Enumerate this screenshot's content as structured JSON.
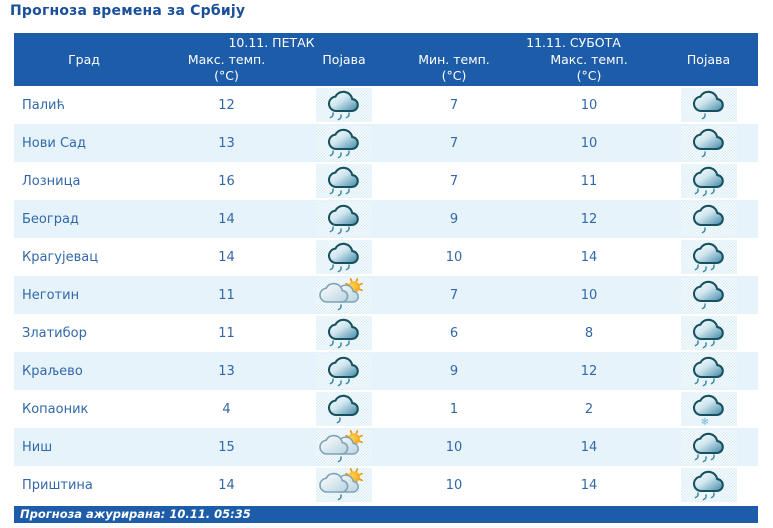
{
  "page": {
    "title": "Прогноза времена за Србију"
  },
  "colors": {
    "header_bg": "#1d5ca9",
    "row_alt_bg": "#e7f3fb",
    "text_blue": "#3268a8",
    "title_blue": "#1a4f9b"
  },
  "table": {
    "day1": "10.11. ПЕТАК",
    "day2": "11.11. СУБОТА",
    "columns": {
      "city": "Град",
      "max_temp": "Макс. темп.",
      "min_temp": "Мин. темп.",
      "unit": "(°C)",
      "phenomenon": "Појава"
    },
    "rows": [
      {
        "city": "Палић",
        "fri_max": "12",
        "fri_icon": "rain",
        "sat_min": "7",
        "sat_max": "10",
        "sat_icon": "light-rain"
      },
      {
        "city": "Нови Сад",
        "fri_max": "13",
        "fri_icon": "rain",
        "sat_min": "7",
        "sat_max": "10",
        "sat_icon": "light-rain"
      },
      {
        "city": "Лозница",
        "fri_max": "16",
        "fri_icon": "rain",
        "sat_min": "7",
        "sat_max": "11",
        "sat_icon": "rain"
      },
      {
        "city": "Београд",
        "fri_max": "14",
        "fri_icon": "rain",
        "sat_min": "9",
        "sat_max": "12",
        "sat_icon": "light-rain"
      },
      {
        "city": "Крагујевац",
        "fri_max": "14",
        "fri_icon": "rain",
        "sat_min": "10",
        "sat_max": "14",
        "sat_icon": "rain"
      },
      {
        "city": "Неготин",
        "fri_max": "11",
        "fri_icon": "sun-light-rain",
        "sat_min": "7",
        "sat_max": "10",
        "sat_icon": "light-rain"
      },
      {
        "city": "Златибор",
        "fri_max": "11",
        "fri_icon": "rain",
        "sat_min": "6",
        "sat_max": "8",
        "sat_icon": "rain"
      },
      {
        "city": "Краљево",
        "fri_max": "13",
        "fri_icon": "rain",
        "sat_min": "9",
        "sat_max": "12",
        "sat_icon": "rain"
      },
      {
        "city": "Копаоник",
        "fri_max": "4",
        "fri_icon": "light-rain",
        "sat_min": "1",
        "sat_max": "2",
        "sat_icon": "snow"
      },
      {
        "city": "Ниш",
        "fri_max": "15",
        "fri_icon": "sun-light-rain",
        "sat_min": "10",
        "sat_max": "14",
        "sat_icon": "rain"
      },
      {
        "city": "Приштина",
        "fri_max": "14",
        "fri_icon": "sun-light-rain",
        "sat_min": "10",
        "sat_max": "14",
        "sat_icon": "rain"
      }
    ]
  },
  "footer": {
    "updated": "Прогноза ажурирана:  10.11. 05:35"
  }
}
